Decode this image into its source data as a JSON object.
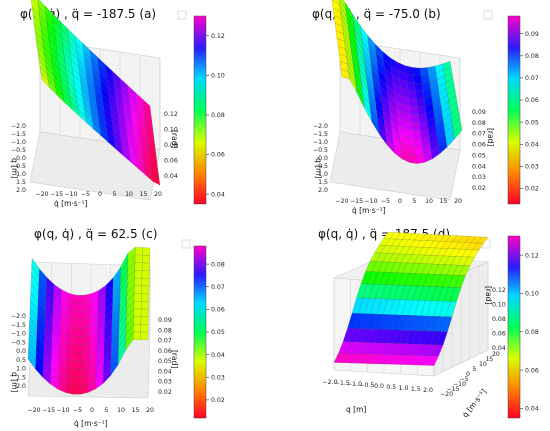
{
  "chart_data": [
    {
      "type": "surface",
      "panel": "a",
      "title": "φ(q, q̇) , q̈ = -187.5 (a)",
      "xlabel": "q̇ [m·s⁻¹]",
      "ylabel": "q [m]",
      "zlabel": "[rad]",
      "x_ticks": [
        "−20",
        "−15",
        "−10",
        "−5",
        "0",
        "5",
        "10",
        "15",
        "20"
      ],
      "y_ticks": [
        "−2.0",
        "−1.5",
        "−1.0",
        "−0.5",
        "0.0",
        "0.5",
        "1.0",
        "1.5",
        "2.0"
      ],
      "z_ticks": [
        "0.04",
        "0.06",
        "0.08",
        "0.10",
        "0.12"
      ],
      "zlim": [
        0.035,
        0.13
      ],
      "colorbar_ticks": [
        "0.04",
        "0.06",
        "0.08",
        "0.10",
        "0.12"
      ],
      "colorbar_range": [
        0.035,
        0.13
      ],
      "colormap": "gist_rainbow"
    },
    {
      "type": "surface",
      "panel": "b",
      "title": "φ(q, q̇) , q̈ = -75.0 (b)",
      "xlabel": "q̇ [m·s⁻¹]",
      "ylabel": "q [m]",
      "zlabel": "[rad]",
      "x_ticks": [
        "−20",
        "−15",
        "−10",
        "−5",
        "0",
        "5",
        "10",
        "15",
        "20"
      ],
      "y_ticks": [
        "−2.0",
        "−1.5",
        "−1.0",
        "−0.5",
        "0.0",
        "0.5",
        "1.0",
        "1.5",
        "2.0"
      ],
      "z_ticks": [
        "0.02",
        "0.03",
        "0.04",
        "0.05",
        "0.06",
        "0.07",
        "0.08",
        "0.09"
      ],
      "zlim": [
        0.015,
        0.095
      ],
      "colorbar_ticks": [
        "0.02",
        "0.03",
        "0.04",
        "0.05",
        "0.06",
        "0.07",
        "0.08",
        "0.09"
      ],
      "colorbar_range": [
        0.013,
        0.098
      ],
      "colormap": "gist_rainbow"
    },
    {
      "type": "surface",
      "panel": "c",
      "title": "φ(q, q̇) , q̈ = 62.5 (c)",
      "xlabel": "q̇ [m·s⁻¹]",
      "ylabel": "q [m]",
      "zlabel": "[rad]",
      "x_ticks": [
        "−20",
        "−15",
        "−10",
        "−5",
        "0",
        "5",
        "10",
        "15",
        "20"
      ],
      "y_ticks": [
        "−2.0",
        "−1.5",
        "−1.0",
        "−0.5",
        "0.0",
        "0.5",
        "1.0",
        "1.5",
        "2.0"
      ],
      "z_ticks": [
        "0.02",
        "0.03",
        "0.04",
        "0.05",
        "0.06",
        "0.07",
        "0.08",
        "0.09"
      ],
      "zlim": [
        0.015,
        0.095
      ],
      "colorbar_ticks": [
        "0.02",
        "0.03",
        "0.04",
        "0.05",
        "0.06",
        "0.07",
        "0.08"
      ],
      "colorbar_range": [
        0.012,
        0.088
      ],
      "colormap": "gist_rainbow"
    },
    {
      "type": "surface",
      "panel": "d",
      "title": "φ(q, q̇) , q̈ = 187.5 (d)",
      "xlabel": "q [m]",
      "ylabel": "q̇ [m·s⁻¹]",
      "zlabel": "[rad]",
      "x_ticks": [
        "−2.0",
        "−1.5",
        "−1.0",
        "−0.5",
        "0.0",
        "0.5",
        "1.0",
        "1.5",
        "2.0"
      ],
      "y_ticks": [
        "−20",
        "−15",
        "−10",
        "−5",
        "0",
        "5",
        "10",
        "15",
        "20"
      ],
      "z_ticks": [
        "0.04",
        "0.06",
        "0.08",
        "0.10",
        "0.12"
      ],
      "zlim": [
        0.035,
        0.13
      ],
      "colorbar_ticks": [
        "0.04",
        "0.06",
        "0.08",
        "0.10",
        "0.12"
      ],
      "colorbar_range": [
        0.035,
        0.13
      ],
      "colormap": "gist_rainbow"
    }
  ]
}
